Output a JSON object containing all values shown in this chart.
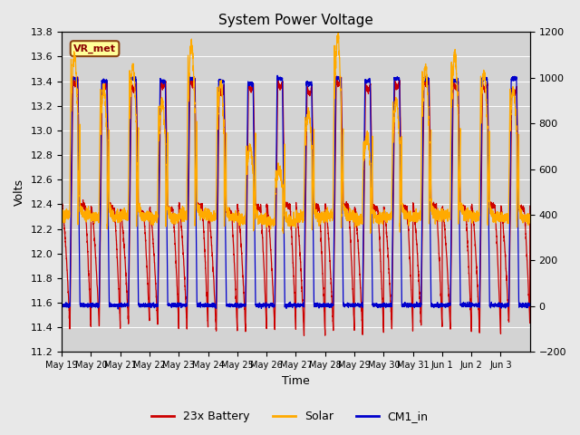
{
  "title": "System Power Voltage",
  "xlabel": "Time",
  "ylabel": "Volts",
  "ylim_left": [
    11.2,
    13.8
  ],
  "ylim_right": [
    -200,
    1200
  ],
  "annotation_text": "VR_met",
  "background_color": "#e8e8e8",
  "plot_bg_color": "#d3d3d3",
  "legend_labels": [
    "23x Battery",
    "Solar",
    "CM1_in"
  ],
  "legend_colors": [
    "#cc0000",
    "#ffaa00",
    "#0000cc"
  ],
  "x_tick_labels": [
    "May 19",
    "May 20",
    "May 21",
    "May 22",
    "May 23",
    "May 24",
    "May 25",
    "May 26",
    "May 27",
    "May 28",
    "May 29",
    "May 30",
    "May 31",
    "Jun 1",
    "Jun 2",
    "Jun 3"
  ],
  "yticks_left": [
    11.2,
    11.4,
    11.6,
    11.8,
    12.0,
    12.2,
    12.4,
    12.6,
    12.8,
    13.0,
    13.2,
    13.4,
    13.6,
    13.8
  ],
  "yticks_right": [
    -200,
    0,
    200,
    400,
    600,
    800,
    1000,
    1200
  ],
  "num_days": 16,
  "seed": 42,
  "solar_peaks": [
    1100,
    950,
    1050,
    900,
    1150,
    980,
    700,
    600,
    850,
    1180,
    750,
    900,
    1050,
    1100,
    1020,
    950
  ],
  "solar_night": [
    400,
    390,
    395,
    385,
    400,
    390,
    380,
    370,
    390,
    395,
    380,
    390,
    395,
    400,
    390,
    385
  ],
  "batt_min": [
    11.38,
    11.4,
    11.42,
    11.4,
    11.38,
    11.35,
    11.38,
    11.37,
    11.33,
    11.37,
    11.35,
    11.38,
    11.4,
    11.38,
    11.35,
    11.42
  ],
  "batt_float": [
    12.4,
    12.38,
    12.35,
    12.37,
    12.4,
    12.35,
    12.38,
    12.4,
    12.38,
    12.4,
    12.38,
    12.38,
    12.4,
    12.38,
    12.4,
    12.38
  ],
  "batt_peak": [
    13.42,
    13.4,
    13.38,
    13.4,
    13.42,
    13.35,
    13.38,
    13.4,
    13.35,
    13.42,
    13.38,
    13.4,
    13.42,
    13.4,
    13.38,
    13.35
  ],
  "cm1_night": [
    11.58,
    11.58,
    11.58,
    11.58,
    11.58,
    11.58,
    11.58,
    11.58,
    11.58,
    11.58,
    11.58,
    11.58,
    11.58,
    11.58,
    11.58,
    11.58
  ],
  "cm1_peak": [
    13.42,
    13.4,
    13.42,
    13.4,
    13.42,
    13.4,
    13.38,
    13.42,
    13.38,
    13.42,
    13.4,
    13.42,
    13.42,
    13.4,
    13.42,
    13.42
  ]
}
